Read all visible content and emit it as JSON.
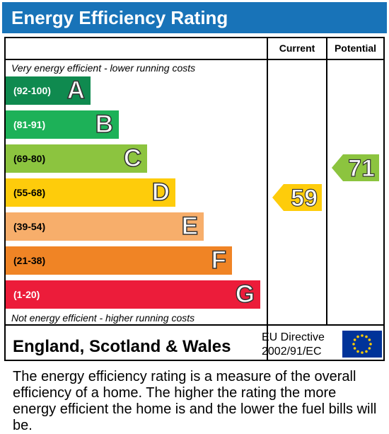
{
  "header": {
    "title": "Energy Efficiency Rating"
  },
  "columns": {
    "current": "Current",
    "potential": "Potential"
  },
  "notes": {
    "top": "Very energy efficient - lower running costs",
    "bottom": "Not energy efficient - higher running costs"
  },
  "chart_data": {
    "type": "bar",
    "title": "Energy Efficiency Rating",
    "bands": [
      {
        "letter": "A",
        "range": "(92-100)",
        "color": "#0f8a4f",
        "min": 92,
        "max": 100
      },
      {
        "letter": "B",
        "range": "(81-91)",
        "color": "#1db158",
        "min": 81,
        "max": 91
      },
      {
        "letter": "C",
        "range": "(69-80)",
        "color": "#8cc43f",
        "min": 69,
        "max": 80
      },
      {
        "letter": "D",
        "range": "(55-68)",
        "color": "#fecc0b",
        "min": 55,
        "max": 68
      },
      {
        "letter": "E",
        "range": "(39-54)",
        "color": "#f7ae6b",
        "min": 39,
        "max": 54
      },
      {
        "letter": "F",
        "range": "(21-38)",
        "color": "#f08425",
        "min": 21,
        "max": 38
      },
      {
        "letter": "G",
        "range": "(1-20)",
        "color": "#ec1c3a",
        "min": 1,
        "max": 20
      }
    ],
    "current": {
      "value": 59,
      "label": "59",
      "band": "D",
      "color": "#fecc0b"
    },
    "potential": {
      "value": 71,
      "label": "71",
      "band": "C",
      "color": "#8cc43f"
    }
  },
  "footer": {
    "region": "England, Scotland & Wales",
    "directive_line1": "EU Directive",
    "directive_line2": "2002/91/EC",
    "flag_color": "#003399",
    "star_color": "#ffcc00"
  },
  "caption": "The energy efficiency rating is a measure of the overall efficiency of a home. The higher the rating the more energy efficient the home is and the lower the fuel bills will be."
}
